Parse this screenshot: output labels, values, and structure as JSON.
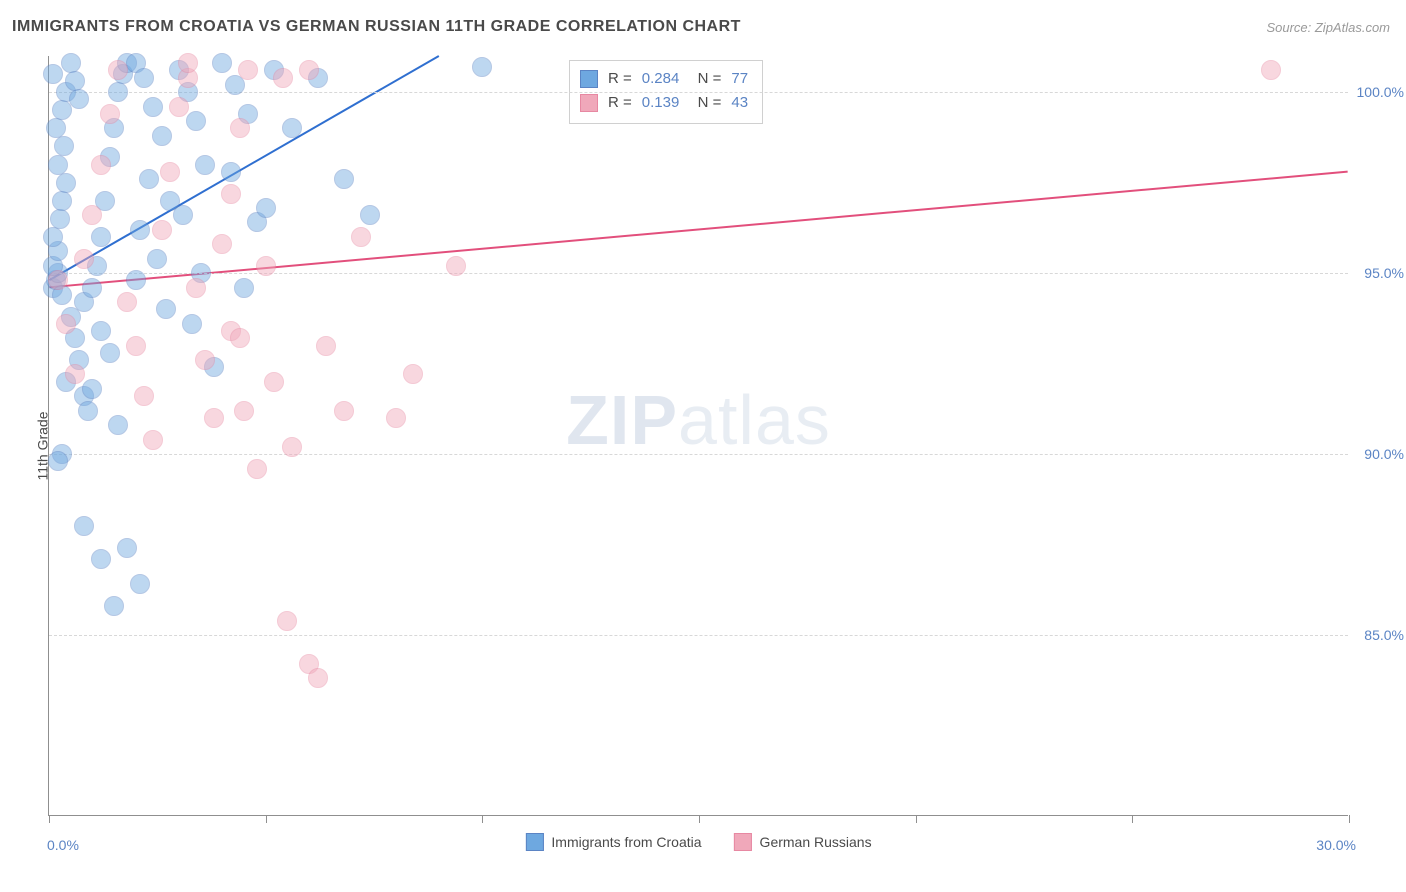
{
  "title": "IMMIGRANTS FROM CROATIA VS GERMAN RUSSIAN 11TH GRADE CORRELATION CHART",
  "source": "Source: ZipAtlas.com",
  "y_axis_label": "11th Grade",
  "watermark_bold": "ZIP",
  "watermark_light": "atlas",
  "chart": {
    "type": "scatter",
    "background_color": "#ffffff",
    "grid_color": "#d8d8d8",
    "axis_color": "#8f8f8f",
    "text_color": "#4a4a4a",
    "value_color": "#5b84c4",
    "xlim": [
      0,
      30
    ],
    "ylim": [
      80,
      101
    ],
    "x_ticks": [
      0,
      5,
      10,
      15,
      20,
      25,
      30
    ],
    "x_tick_labels": {
      "0": "0.0%",
      "30": "30.0%"
    },
    "y_ticks": [
      85,
      90,
      95,
      100
    ],
    "y_tick_labels": {
      "85": "85.0%",
      "90": "90.0%",
      "95": "95.0%",
      "100": "100.0%"
    },
    "point_radius": 10,
    "point_opacity": 0.45,
    "line_width": 2,
    "series": [
      {
        "name": "Immigrants from Croatia",
        "color": "#6ea8e0",
        "border": "#5b84c4",
        "line_color": "#2f6fd0",
        "R": "0.284",
        "N": "77",
        "trend": {
          "x1": 0,
          "y1": 94.8,
          "x2": 9.0,
          "y2": 101
        },
        "points": [
          [
            0.1,
            94.6
          ],
          [
            0.15,
            94.8
          ],
          [
            0.2,
            95.0
          ],
          [
            0.1,
            95.2
          ],
          [
            0.3,
            94.4
          ],
          [
            0.2,
            95.6
          ],
          [
            0.1,
            96.0
          ],
          [
            0.25,
            96.5
          ],
          [
            0.3,
            97.0
          ],
          [
            0.4,
            97.5
          ],
          [
            0.2,
            98.0
          ],
          [
            0.35,
            98.5
          ],
          [
            0.15,
            99.0
          ],
          [
            0.3,
            99.5
          ],
          [
            0.4,
            100.0
          ],
          [
            0.1,
            100.5
          ],
          [
            0.5,
            100.8
          ],
          [
            0.6,
            100.3
          ],
          [
            0.7,
            99.8
          ],
          [
            0.8,
            94.2
          ],
          [
            0.5,
            93.8
          ],
          [
            0.6,
            93.2
          ],
          [
            0.7,
            92.6
          ],
          [
            0.4,
            92.0
          ],
          [
            0.8,
            91.6
          ],
          [
            0.9,
            91.2
          ],
          [
            0.3,
            90.0
          ],
          [
            1.0,
            94.6
          ],
          [
            1.1,
            95.2
          ],
          [
            1.2,
            96.0
          ],
          [
            1.3,
            97.0
          ],
          [
            1.4,
            98.2
          ],
          [
            1.5,
            99.0
          ],
          [
            1.6,
            100.0
          ],
          [
            1.7,
            100.5
          ],
          [
            1.8,
            100.8
          ],
          [
            1.2,
            93.4
          ],
          [
            1.4,
            92.8
          ],
          [
            1.0,
            91.8
          ],
          [
            1.6,
            90.8
          ],
          [
            2.0,
            100.8
          ],
          [
            2.2,
            100.4
          ],
          [
            2.4,
            99.6
          ],
          [
            2.6,
            98.8
          ],
          [
            2.3,
            97.6
          ],
          [
            2.8,
            97.0
          ],
          [
            2.1,
            96.2
          ],
          [
            2.5,
            95.4
          ],
          [
            2.0,
            94.8
          ],
          [
            2.7,
            94.0
          ],
          [
            3.0,
            100.6
          ],
          [
            3.2,
            100.0
          ],
          [
            3.4,
            99.2
          ],
          [
            3.6,
            98.0
          ],
          [
            3.1,
            96.6
          ],
          [
            3.5,
            95.0
          ],
          [
            3.3,
            93.6
          ],
          [
            3.8,
            92.4
          ],
          [
            4.0,
            100.8
          ],
          [
            4.3,
            100.2
          ],
          [
            4.6,
            99.4
          ],
          [
            4.2,
            97.8
          ],
          [
            4.8,
            96.4
          ],
          [
            4.5,
            94.6
          ],
          [
            5.2,
            100.6
          ],
          [
            5.6,
            99.0
          ],
          [
            5.0,
            96.8
          ],
          [
            6.2,
            100.4
          ],
          [
            6.8,
            97.6
          ],
          [
            7.4,
            96.6
          ],
          [
            10.0,
            100.7
          ],
          [
            1.2,
            87.1
          ],
          [
            1.5,
            85.8
          ],
          [
            0.2,
            89.8
          ],
          [
            0.8,
            88.0
          ],
          [
            2.1,
            86.4
          ],
          [
            1.8,
            87.4
          ]
        ]
      },
      {
        "name": "German Russians",
        "color": "#f0a8ba",
        "border": "#e788a2",
        "line_color": "#e24f7c",
        "R": "0.139",
        "N": "43",
        "trend": {
          "x1": 0,
          "y1": 94.6,
          "x2": 30,
          "y2": 97.8
        },
        "points": [
          [
            0.2,
            94.8
          ],
          [
            0.4,
            93.6
          ],
          [
            0.6,
            92.2
          ],
          [
            0.8,
            95.4
          ],
          [
            1.0,
            96.6
          ],
          [
            1.2,
            98.0
          ],
          [
            1.4,
            99.4
          ],
          [
            1.6,
            100.6
          ],
          [
            1.8,
            94.2
          ],
          [
            2.0,
            93.0
          ],
          [
            2.2,
            91.6
          ],
          [
            2.4,
            90.4
          ],
          [
            2.6,
            96.2
          ],
          [
            2.8,
            97.8
          ],
          [
            3.0,
            99.6
          ],
          [
            3.2,
            100.4
          ],
          [
            3.4,
            94.6
          ],
          [
            3.6,
            92.6
          ],
          [
            3.8,
            91.0
          ],
          [
            4.0,
            95.8
          ],
          [
            4.2,
            97.2
          ],
          [
            4.4,
            99.0
          ],
          [
            4.6,
            100.6
          ],
          [
            4.2,
            93.4
          ],
          [
            4.5,
            91.2
          ],
          [
            4.8,
            89.6
          ],
          [
            5.0,
            95.2
          ],
          [
            5.4,
            100.4
          ],
          [
            5.2,
            92.0
          ],
          [
            5.6,
            90.2
          ],
          [
            6.0,
            100.6
          ],
          [
            6.4,
            93.0
          ],
          [
            6.8,
            91.2
          ],
          [
            5.5,
            85.4
          ],
          [
            6.0,
            84.2
          ],
          [
            6.2,
            83.8
          ],
          [
            7.2,
            96.0
          ],
          [
            8.4,
            92.2
          ],
          [
            8.0,
            91.0
          ],
          [
            9.4,
            95.2
          ],
          [
            3.2,
            100.8
          ],
          [
            28.2,
            100.6
          ],
          [
            4.4,
            93.2
          ]
        ]
      }
    ]
  }
}
